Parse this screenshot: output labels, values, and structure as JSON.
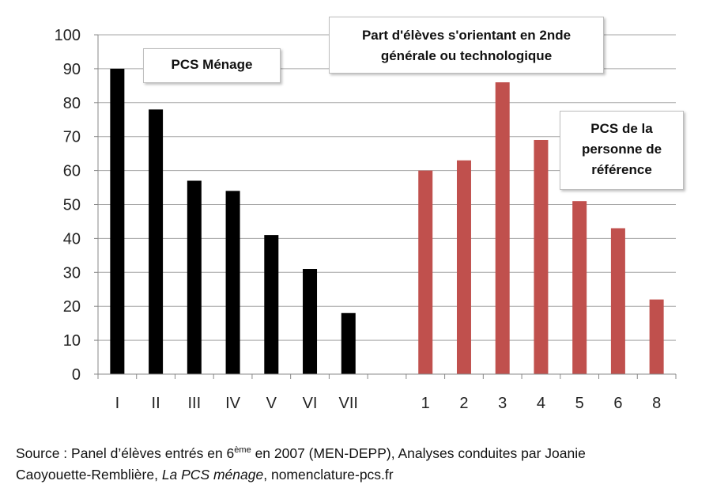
{
  "chart_data": {
    "type": "bar",
    "ylim": [
      0,
      100
    ],
    "yticks": [
      0,
      10,
      20,
      30,
      40,
      50,
      60,
      70,
      80,
      90,
      100
    ],
    "grid": true,
    "groups": [
      {
        "name": "PCS Ménage",
        "color": "#000000",
        "categories": [
          "I",
          "II",
          "III",
          "IV",
          "V",
          "VI",
          "VII"
        ],
        "values": [
          90,
          78,
          57,
          54,
          41,
          31,
          18
        ]
      },
      {
        "name": "PCS de la personne de référence",
        "color": "#c0504d",
        "categories": [
          "1",
          "2",
          "3",
          "4",
          "5",
          "6",
          "8"
        ],
        "values": [
          60,
          63,
          86,
          69,
          51,
          43,
          22
        ]
      }
    ],
    "annotations": {
      "pcs_menage": "PCS Ménage",
      "title_line1": "Part d'élèves s'orientant en 2nde",
      "title_line2": "générale ou technologique",
      "pcs_ref_line1": "PCS de la",
      "pcs_ref_line2": "personne de",
      "pcs_ref_line3": "référence"
    }
  },
  "source": {
    "prefix": "Source : Panel d’élèves entrés en 6",
    "superscript": "ème",
    "middle": " en 2007 (MEN-DEPP), Analyses conduites par Joanie Caoyouette-Remblière, ",
    "italic": "La PCS ménage",
    "suffix": ", nomenclature-pcs.fr"
  }
}
